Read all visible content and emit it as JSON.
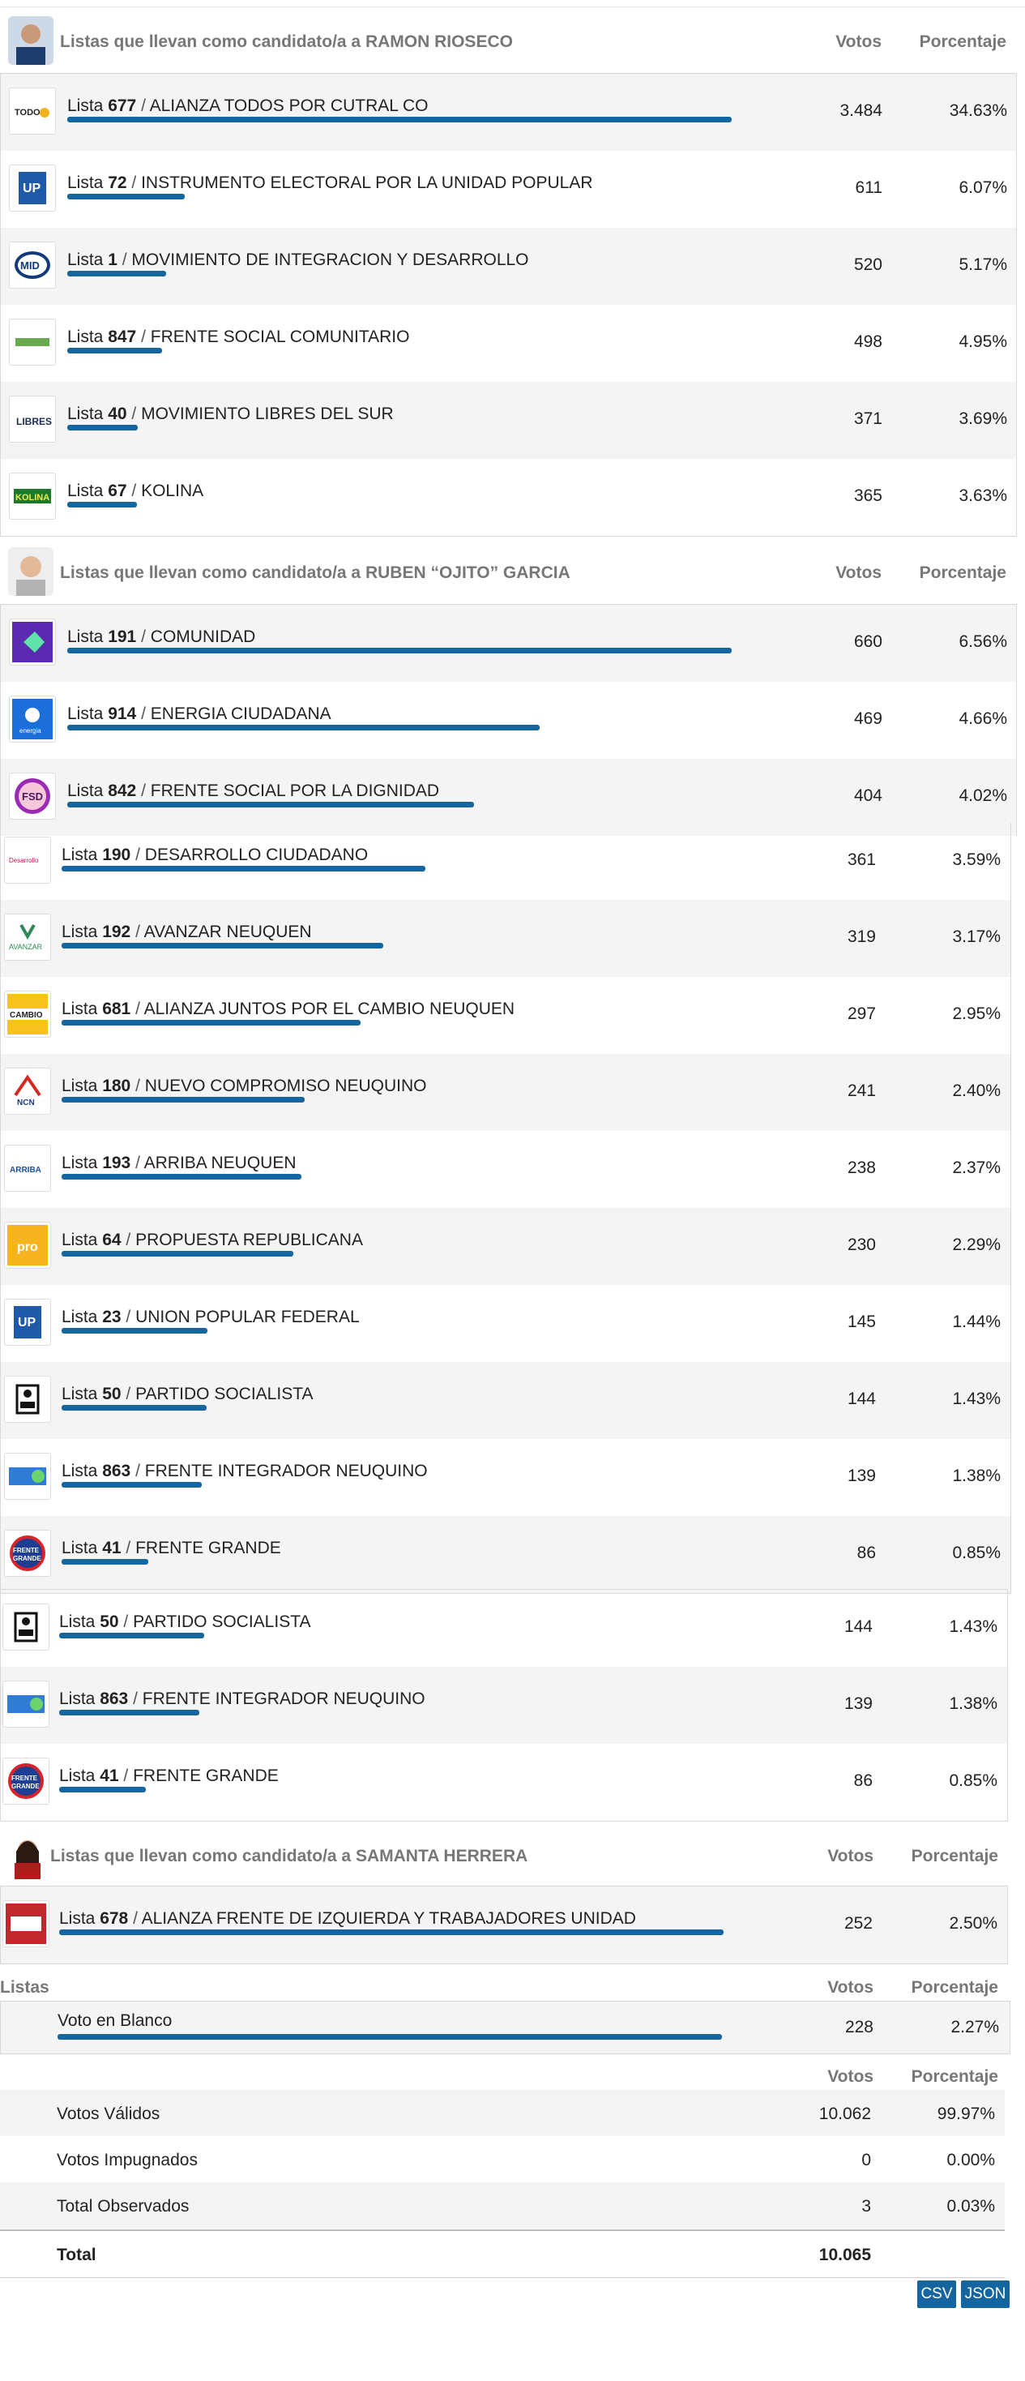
{
  "section1": {
    "title": "Listas que llevan como candidato/a a RAMON RIOSECO",
    "votes_header": "Votos",
    "pct_header": "Porcentaje",
    "rows": [
      {
        "num": "677",
        "name": "ALIANZA TODOS POR CUTRAL CO",
        "votes": "3.484",
        "pct": "34.63%",
        "share": 0.82,
        "logo": "TODOS"
      },
      {
        "num": "72",
        "name": "INSTRUMENTO ELECTORAL POR LA UNIDAD POPULAR",
        "votes": "611",
        "pct": "6.07%",
        "share": 0.145,
        "logo": "UP"
      },
      {
        "num": "1",
        "name": "MOVIMIENTO DE INTEGRACION Y DESARROLLO",
        "votes": "520",
        "pct": "5.17%",
        "share": 0.122,
        "logo": "MID"
      },
      {
        "num": "847",
        "name": "FRENTE SOCIAL COMUNITARIO",
        "votes": "498",
        "pct": "4.95%",
        "share": 0.117,
        "logo": "FSC"
      },
      {
        "num": "40",
        "name": "MOVIMIENTO LIBRES DEL SUR",
        "votes": "371",
        "pct": "3.69%",
        "share": 0.087,
        "logo": "LIBRES"
      },
      {
        "num": "67",
        "name": "KOLINA",
        "votes": "365",
        "pct": "3.63%",
        "share": 0.086,
        "logo": "KOLINA"
      }
    ]
  },
  "section2": {
    "title": "Listas que llevan como candidato/a a RUBEN “OJITO” GARCIA",
    "votes_header": "Votos",
    "pct_header": "Porcentaje",
    "rows": [
      {
        "num": "191",
        "name": "COMUNIDAD",
        "votes": "660",
        "pct": "6.56%",
        "share": 0.82,
        "logo": ""
      },
      {
        "num": "914",
        "name": "ENERGIA CIUDADANA",
        "votes": "469",
        "pct": "4.66%",
        "share": 0.583,
        "logo": "energia"
      },
      {
        "num": "842",
        "name": "FRENTE SOCIAL POR LA DIGNIDAD",
        "votes": "404",
        "pct": "4.02%",
        "share": 0.502,
        "logo": "FSD"
      },
      {
        "num": "190",
        "name": "DESARROLLO CIUDADANO",
        "votes": "361",
        "pct": "3.59%",
        "share": 0.449,
        "logo": "Desarrollo"
      },
      {
        "num": "192",
        "name": "AVANZAR NEUQUEN",
        "votes": "319",
        "pct": "3.17%",
        "share": 0.397,
        "logo": "AVANZAR"
      },
      {
        "num": "681",
        "name": "ALIANZA JUNTOS POR EL CAMBIO NEUQUEN",
        "votes": "297",
        "pct": "2.95%",
        "share": 0.369,
        "logo": "CAMBIO"
      },
      {
        "num": "180",
        "name": "NUEVO COMPROMISO NEUQUINO",
        "votes": "241",
        "pct": "2.40%",
        "share": 0.3,
        "logo": "NCN"
      },
      {
        "num": "193",
        "name": "ARRIBA NEUQUEN",
        "votes": "238",
        "pct": "2.37%",
        "share": 0.296,
        "logo": "ARRIBA"
      },
      {
        "num": "64",
        "name": "PROPUESTA REPUBLICANA",
        "votes": "230",
        "pct": "2.29%",
        "share": 0.286,
        "logo": "pro"
      },
      {
        "num": "23",
        "name": "UNION POPULAR FEDERAL",
        "votes": "145",
        "pct": "1.44%",
        "share": 0.18,
        "logo": "UP"
      },
      {
        "num": "50",
        "name": "PARTIDO SOCIALISTA",
        "votes": "144",
        "pct": "1.43%",
        "share": 0.179,
        "logo": "PS"
      },
      {
        "num": "863",
        "name": "FRENTE INTEGRADOR NEUQUINO",
        "votes": "139",
        "pct": "1.38%",
        "share": 0.173,
        "logo": "FIN"
      },
      {
        "num": "41",
        "name": "FRENTE GRANDE",
        "votes": "86",
        "pct": "0.85%",
        "share": 0.107,
        "logo": "FRENTE GRANDE"
      }
    ],
    "repeat_rows": [
      {
        "num": "50",
        "name": "PARTIDO SOCIALISTA",
        "votes": "144",
        "pct": "1.43%",
        "share": 0.179,
        "logo": "PS"
      },
      {
        "num": "863",
        "name": "FRENTE INTEGRADOR NEUQUINO",
        "votes": "139",
        "pct": "1.38%",
        "share": 0.173,
        "logo": "FIN"
      },
      {
        "num": "41",
        "name": "FRENTE GRANDE",
        "votes": "86",
        "pct": "0.85%",
        "share": 0.107,
        "logo": "FRENTE GRANDE"
      }
    ]
  },
  "section3": {
    "title": "Listas que llevan como candidato/a a SAMANTA HERRERA",
    "votes_header": "Votos",
    "pct_header": "Porcentaje",
    "rows": [
      {
        "num": "678",
        "name": "ALIANZA FRENTE DE IZQUIERDA Y TRABAJADORES UNIDAD",
        "votes": "252",
        "pct": "2.50%",
        "share": 0.82,
        "logo": "FIT"
      }
    ]
  },
  "listas": {
    "header": "Listas",
    "votes_header": "Votos",
    "pct_header": "Porcentaje",
    "blank_label": "Voto en Blanco",
    "blank_votes": "228",
    "blank_pct": "2.27%",
    "blank_share": 0.82
  },
  "summary": {
    "votes_header": "Votos",
    "pct_header": "Porcentaje",
    "rows": [
      {
        "label": "Votos Válidos",
        "votes": "10.062",
        "pct": "99.97%"
      },
      {
        "label": "Votos Impugnados",
        "votes": "0",
        "pct": "0.00%"
      },
      {
        "label": "Total Observados",
        "votes": "3",
        "pct": "0.03%"
      }
    ],
    "total_label": "Total",
    "total_votes": "10.065"
  },
  "list_prefix": "Lista",
  "separator": "/",
  "buttons": {
    "csv": "CSV",
    "json": "JSON"
  },
  "colors": {
    "bar": "#1565a0",
    "alt_row": "#f4f4f4",
    "header_text": "#777777"
  }
}
